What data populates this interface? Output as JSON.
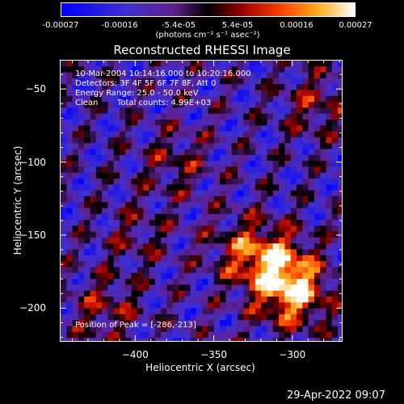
{
  "chart_data": {
    "type": "heatmap",
    "title": "Reconstructed RHESSI Image",
    "xlabel": "Heliocentric X (arcsec)",
    "ylabel": "Heliocentric Y (arcsec)",
    "xlim": [
      -448,
      -268
    ],
    "ylim": [
      -223,
      -30
    ],
    "x_ticks": [
      -400,
      -350,
      -300
    ],
    "y_ticks": [
      -50,
      -100,
      -150,
      -200
    ],
    "colorbar": {
      "ticks": [
        "-0.00027",
        "-0.00016",
        "-5.4e-05",
        "5.4e-05",
        "0.00016",
        "0.00027"
      ],
      "range": [
        -0.00027,
        0.00027
      ],
      "units": "(photons cm⁻² s⁻¹ asec⁻²)",
      "colors": [
        "#1010ff",
        "#5040c0",
        "#7030a0",
        "#200000",
        "#c02000",
        "#ff6000",
        "#ffc040",
        "#ffffff"
      ]
    },
    "peak": [
      -286,
      -213
    ],
    "hot_regions": [
      {
        "x": -300,
        "y": -190,
        "value": 0.00027
      },
      {
        "x": -310,
        "y": -170,
        "value": 0.00022
      },
      {
        "x": -330,
        "y": -160,
        "value": 0.00016
      },
      {
        "x": -285,
        "y": -60,
        "value": 0.00012
      },
      {
        "x": -375,
        "y": -100,
        "value": 0.0001
      },
      {
        "x": -420,
        "y": -200,
        "value": 0.00012
      },
      {
        "x": -400,
        "y": -150,
        "value": 8e-05
      }
    ]
  },
  "annotations": {
    "time_range": "10-Mar-2004 10:14:16.000 to 10:20:16.000",
    "detectors": "Detectors: 3F 4F 5F 6F 7F 8F, Att 0",
    "energy": "Energy Range: 25.0 - 50.0 keV",
    "method": "Clean",
    "total_counts": "Total counts: 4.99E+03",
    "peak_label": "Position of Peak = [-286,-213]"
  },
  "footer": {
    "timestamp": "29-Apr-2022 09:07"
  }
}
